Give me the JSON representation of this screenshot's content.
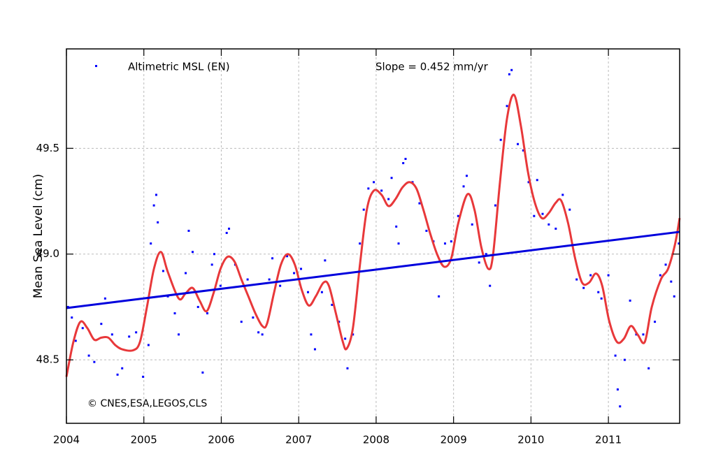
{
  "chart_data": {
    "type": "scatter",
    "ylabel": "Mean Sea Level (cm)",
    "annotations": [
      "Slope = 0.452 mm/yr",
      "© CNES,ESA,LEGOS,CLS"
    ],
    "xlim": [
      2004,
      2011.92
    ],
    "xticks": [
      2004,
      2005,
      2006,
      2007,
      2008,
      2009,
      2010,
      2011
    ],
    "ylim": [
      48.2,
      49.97
    ],
    "yticks": [
      48.5,
      {
        "value": 49,
        "label": "49.0"
      },
      49.5
    ],
    "grid": true,
    "series": [
      {
        "name": "Altimetric MSL (EN)",
        "type": "scatter",
        "color": "#0000ff",
        "x": [
          2004.02,
          2004.07,
          2004.12,
          2004.21,
          2004.29,
          2004.36,
          2004.45,
          2004.5,
          2004.59,
          2004.66,
          2004.72,
          2004.81,
          2004.9,
          2004.99,
          2005.06,
          2005.09,
          2005.13,
          2005.16,
          2005.18,
          2005.25,
          2005.31,
          2005.4,
          2005.45,
          2005.54,
          2005.58,
          2005.63,
          2005.7,
          2005.76,
          2005.82,
          2005.88,
          2005.91,
          2005.99,
          2006.07,
          2006.1,
          2006.18,
          2006.26,
          2006.34,
          2006.41,
          2006.48,
          2006.53,
          2006.62,
          2006.66,
          2006.76,
          2006.85,
          2006.94,
          2007.03,
          2007.12,
          2007.16,
          2007.21,
          2007.3,
          2007.34,
          2007.43,
          2007.52,
          2007.6,
          2007.63,
          2007.7,
          2007.79,
          2007.84,
          2007.9,
          2007.97,
          2008.07,
          2008.16,
          2008.2,
          2008.26,
          2008.29,
          2008.35,
          2008.38,
          2008.47,
          2008.56,
          2008.65,
          2008.74,
          2008.81,
          2008.89,
          2008.97,
          2009.06,
          2009.13,
          2009.17,
          2009.24,
          2009.33,
          2009.42,
          2009.47,
          2009.54,
          2009.61,
          2009.69,
          2009.72,
          2009.75,
          2009.83,
          2009.9,
          2009.97,
          2010.04,
          2010.08,
          2010.15,
          2010.23,
          2010.32,
          2010.41,
          2010.5,
          2010.59,
          2010.68,
          2010.77,
          2010.87,
          2010.91,
          2011.0,
          2011.09,
          2011.12,
          2011.15,
          2011.21,
          2011.28,
          2011.36,
          2011.45,
          2011.52,
          2011.6,
          2011.67,
          2011.74,
          2011.81,
          2011.85,
          2011.91
        ],
        "values": [
          48.75,
          48.7,
          48.59,
          48.65,
          48.52,
          48.49,
          48.67,
          48.79,
          48.62,
          48.43,
          48.46,
          48.61,
          48.63,
          48.42,
          48.57,
          49.05,
          49.23,
          49.28,
          49.15,
          48.92,
          48.8,
          48.72,
          48.62,
          48.91,
          49.11,
          49.01,
          48.75,
          48.44,
          48.72,
          48.95,
          49.0,
          48.85,
          49.1,
          49.12,
          48.95,
          48.68,
          48.88,
          48.7,
          48.63,
          48.62,
          48.88,
          48.98,
          48.85,
          48.99,
          48.91,
          48.93,
          48.82,
          48.62,
          48.55,
          48.82,
          48.97,
          48.76,
          48.68,
          48.6,
          48.46,
          48.62,
          49.05,
          49.21,
          49.31,
          49.34,
          49.3,
          49.26,
          49.36,
          49.13,
          49.05,
          49.43,
          49.45,
          49.34,
          49.24,
          49.11,
          49.06,
          48.8,
          49.05,
          49.06,
          49.18,
          49.32,
          49.37,
          49.14,
          48.96,
          49.0,
          48.85,
          49.23,
          49.54,
          49.7,
          49.85,
          49.87,
          49.52,
          49.49,
          49.34,
          49.18,
          49.35,
          49.19,
          49.14,
          49.12,
          49.28,
          49.21,
          48.88,
          48.84,
          48.9,
          48.82,
          48.79,
          48.9,
          48.52,
          48.36,
          48.28,
          48.5,
          48.78,
          48.62,
          48.62,
          48.46,
          48.68,
          48.9,
          48.95,
          48.87,
          48.8,
          49.05
        ]
      },
      {
        "type": "line",
        "color": "#e8383a",
        "x": [
          2004.0,
          2004.09,
          2004.18,
          2004.27,
          2004.36,
          2004.45,
          2004.54,
          2004.63,
          2004.72,
          2004.86,
          2004.95,
          2005.04,
          2005.13,
          2005.22,
          2005.31,
          2005.45,
          2005.54,
          2005.63,
          2005.72,
          2005.81,
          2005.9,
          2005.99,
          2006.08,
          2006.17,
          2006.26,
          2006.35,
          2006.44,
          2006.53,
          2006.59,
          2006.68,
          2006.77,
          2006.86,
          2006.95,
          2007.04,
          2007.13,
          2007.22,
          2007.32,
          2007.39,
          2007.48,
          2007.57,
          2007.62,
          2007.7,
          2007.79,
          2007.88,
          2007.97,
          2008.07,
          2008.16,
          2008.25,
          2008.34,
          2008.43,
          2008.52,
          2008.61,
          2008.7,
          2008.79,
          2008.88,
          2008.97,
          2009.06,
          2009.18,
          2009.27,
          2009.36,
          2009.45,
          2009.51,
          2009.6,
          2009.69,
          2009.78,
          2009.87,
          2009.96,
          2010.05,
          2010.14,
          2010.23,
          2010.32,
          2010.39,
          2010.48,
          2010.57,
          2010.66,
          2010.75,
          2010.84,
          2010.92,
          2011.01,
          2011.11,
          2011.2,
          2011.29,
          2011.38,
          2011.47,
          2011.56,
          2011.68,
          2011.77,
          2011.86,
          2011.92
        ],
        "values": [
          48.42,
          48.585,
          48.68,
          48.65,
          48.595,
          48.605,
          48.605,
          48.57,
          48.55,
          48.545,
          48.585,
          48.75,
          48.93,
          49.01,
          48.915,
          48.79,
          48.815,
          48.84,
          48.78,
          48.73,
          48.815,
          48.93,
          48.987,
          48.965,
          48.88,
          48.8,
          48.72,
          48.66,
          48.67,
          48.815,
          48.95,
          49.0,
          48.95,
          48.83,
          48.757,
          48.8,
          48.865,
          48.85,
          48.72,
          48.585,
          48.553,
          48.65,
          48.947,
          49.21,
          49.3,
          49.28,
          49.227,
          49.26,
          49.315,
          49.34,
          49.31,
          49.21,
          49.095,
          48.997,
          48.94,
          48.98,
          49.145,
          49.283,
          49.21,
          49.03,
          48.93,
          48.997,
          49.342,
          49.64,
          49.753,
          49.605,
          49.39,
          49.243,
          49.17,
          49.194,
          49.243,
          49.253,
          49.145,
          48.98,
          48.865,
          48.865,
          48.908,
          48.85,
          48.684,
          48.585,
          48.6,
          48.66,
          48.618,
          48.585,
          48.75,
          48.882,
          48.93,
          49.046,
          49.17
        ]
      },
      {
        "type": "line",
        "color": "#0000dd",
        "x": [
          2004,
          2011.92
        ],
        "values": [
          48.745,
          49.105
        ]
      }
    ]
  }
}
